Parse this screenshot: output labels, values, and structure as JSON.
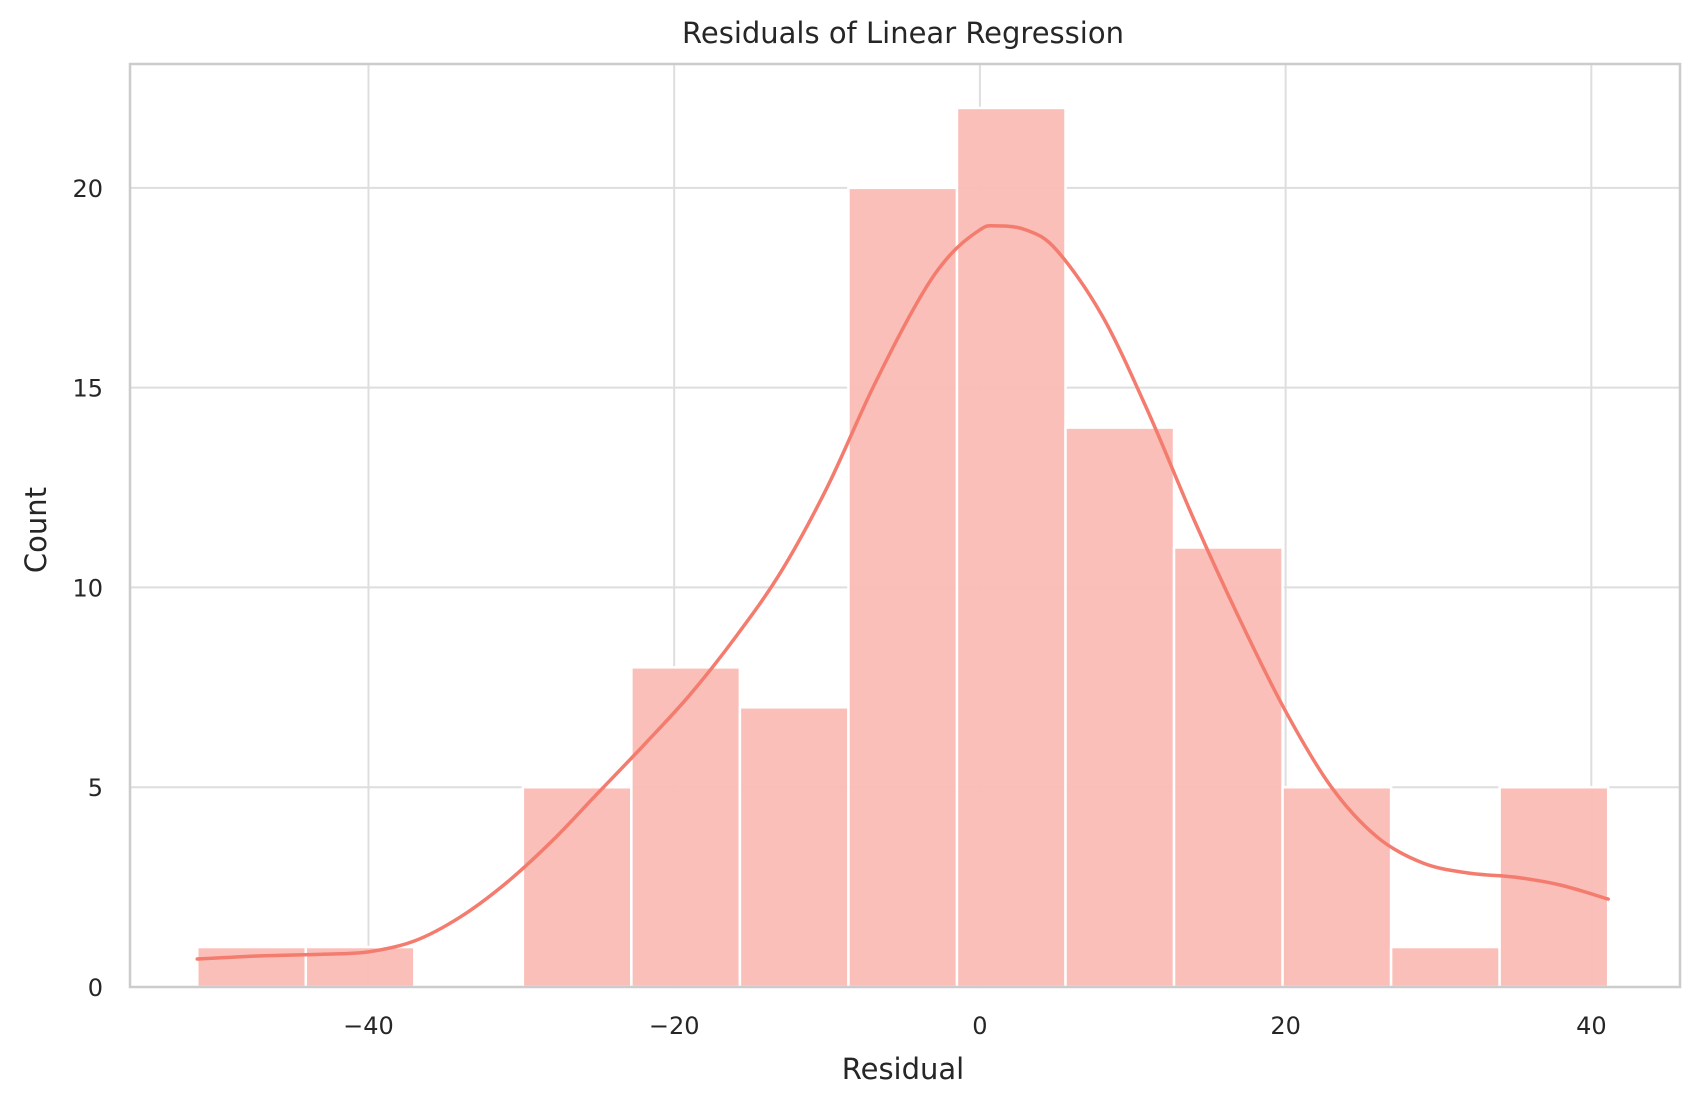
{
  "chart_data": {
    "type": "bar",
    "title": "Residuals of Linear Regression",
    "xlabel": "Residual",
    "ylabel": "Count",
    "xlim": [
      -55.6,
      45.8
    ],
    "ylim": [
      0,
      23.1
    ],
    "x_ticks": [
      {
        "value": -40,
        "label": "−40"
      },
      {
        "value": -20,
        "label": "−20"
      },
      {
        "value": 0,
        "label": "0"
      },
      {
        "value": 20,
        "label": "20"
      },
      {
        "value": 40,
        "label": "40"
      }
    ],
    "y_ticks": [
      {
        "value": 0,
        "label": "0"
      },
      {
        "value": 5,
        "label": "5"
      },
      {
        "value": 10,
        "label": "10"
      },
      {
        "value": 15,
        "label": "15"
      },
      {
        "value": 20,
        "label": "20"
      }
    ],
    "grid": true,
    "bins": [
      {
        "x0": -51.2,
        "x1": -44.1,
        "count": 1
      },
      {
        "x0": -44.1,
        "x1": -37.0,
        "count": 1
      },
      {
        "x0": -37.0,
        "x1": -29.9,
        "count": 0
      },
      {
        "x0": -29.9,
        "x1": -22.8,
        "count": 5
      },
      {
        "x0": -22.8,
        "x1": -15.7,
        "count": 8
      },
      {
        "x0": -15.7,
        "x1": -8.6,
        "count": 7
      },
      {
        "x0": -8.6,
        "x1": -1.5,
        "count": 20
      },
      {
        "x0": -1.5,
        "x1": 5.6,
        "count": 22
      },
      {
        "x0": 5.6,
        "x1": 12.7,
        "count": 14
      },
      {
        "x0": 12.7,
        "x1": 19.8,
        "count": 11
      },
      {
        "x0": 19.8,
        "x1": 26.9,
        "count": 5
      },
      {
        "x0": 26.9,
        "x1": 34.0,
        "count": 1
      },
      {
        "x0": 34.0,
        "x1": 41.1,
        "count": 5
      }
    ],
    "kde": {
      "x": [
        -51.2,
        -47,
        -43,
        -40,
        -37,
        -34,
        -31,
        -28,
        -25,
        -22,
        -19,
        -16,
        -13,
        -10,
        -7,
        -4,
        -2,
        0,
        1,
        3,
        5,
        8,
        11,
        14,
        17,
        20,
        23,
        26,
        29,
        32,
        35,
        38,
        41.1
      ],
      "y": [
        0.7,
        0.78,
        0.82,
        0.88,
        1.15,
        1.75,
        2.6,
        3.65,
        4.85,
        6.05,
        7.3,
        8.75,
        10.4,
        12.5,
        15.0,
        17.2,
        18.3,
        18.95,
        19.05,
        18.95,
        18.45,
        16.8,
        14.4,
        11.7,
        9.2,
        6.9,
        5.0,
        3.75,
        3.1,
        2.85,
        2.75,
        2.55,
        2.2
      ]
    },
    "colors": {
      "bar_fill": "#fabcb5",
      "bar_edge": "#ffffff",
      "kde_line": "#f47c6e",
      "grid": "#dedede",
      "spine": "#cccccc"
    }
  }
}
